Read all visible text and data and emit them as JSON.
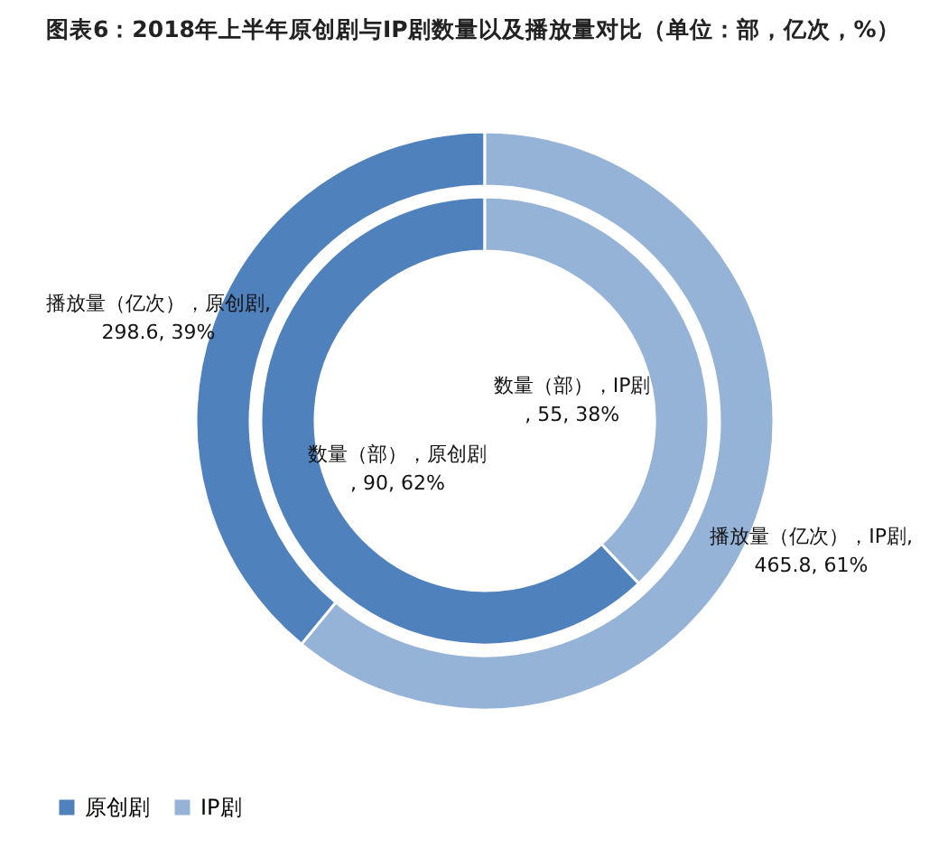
{
  "chart_data": {
    "type": "donut",
    "title": "图表6：2018年上半年原创剧与IP剧数量以及播放量对比（单位：部，亿次，%）",
    "categories": [
      "原创剧",
      "IP剧"
    ],
    "colors": [
      "#4f81bd",
      "#95b3d7"
    ],
    "series": [
      {
        "values": [
          90,
          55
        ],
        "value_labels": [
          "数量（部），原创剧, 90, 62%",
          "数量（部），IP剧, 55, 38%"
        ]
      },
      {
        "values": [
          298.6,
          465.8
        ],
        "value_labels": [
          "播放量（亿次），原创剧, 298.6, 39%",
          "播放量（亿次），IP剧, 465.8, 61%"
        ]
      }
    ],
    "legend": "bottom"
  }
}
